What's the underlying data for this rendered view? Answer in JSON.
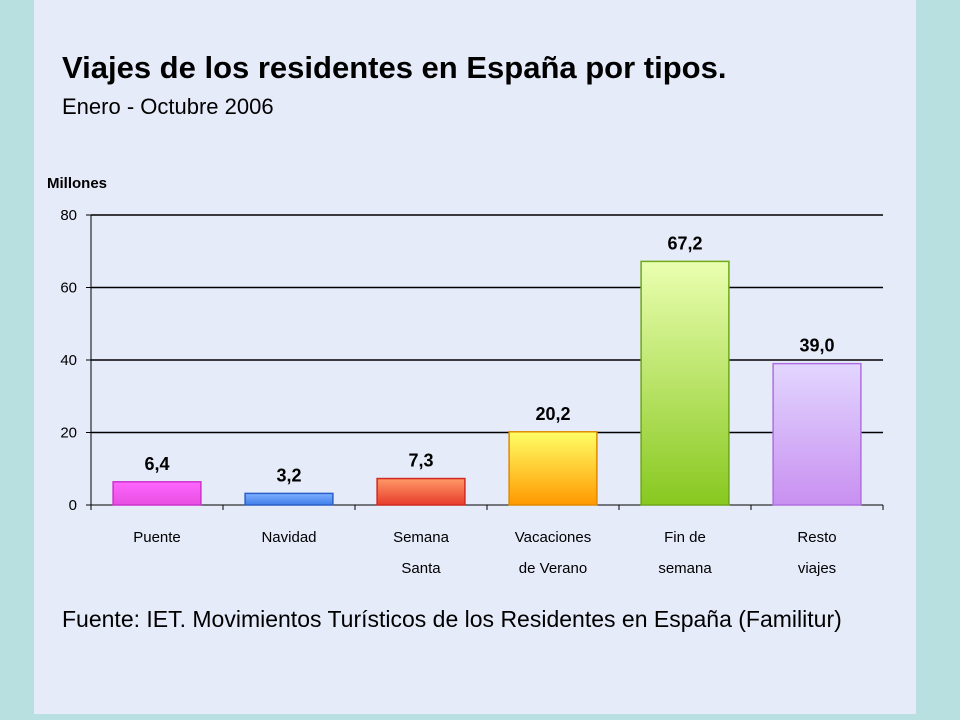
{
  "chart_data": {
    "type": "bar",
    "title": "Viajes de los residentes en España por tipos.",
    "subtitle": "Enero - Octubre 2006",
    "ylabel": "Millones",
    "xlabel": "",
    "ylim": [
      0,
      80
    ],
    "yticks": [
      0,
      20,
      40,
      60,
      80
    ],
    "grid": true,
    "categories": [
      [
        "Puente"
      ],
      [
        "Navidad"
      ],
      [
        "Semana",
        "Santa"
      ],
      [
        "Vacaciones",
        "de Verano"
      ],
      [
        "Fin de",
        "semana"
      ],
      [
        "Resto",
        "viajes"
      ]
    ],
    "values": [
      6.4,
      3.2,
      7.3,
      20.2,
      67.2,
      39.0
    ],
    "data_labels": [
      "6,4",
      "3,2",
      "7,3",
      "20,2",
      "67,2",
      "39,0"
    ],
    "colors": [
      {
        "top": "#ff66ff",
        "bottom": "#e84ee0",
        "stroke": "#cc33cc"
      },
      {
        "top": "#7fb0ff",
        "bottom": "#3f7ee8",
        "stroke": "#2a5fc8"
      },
      {
        "top": "#ff9966",
        "bottom": "#e83c2c",
        "stroke": "#d02a20"
      },
      {
        "top": "#ffff66",
        "bottom": "#ff9900",
        "stroke": "#e08a00"
      },
      {
        "top": "#eaffb0",
        "bottom": "#88c820",
        "stroke": "#6ea818"
      },
      {
        "top": "#e2d6ff",
        "bottom": "#c890f0",
        "stroke": "#b070e0"
      }
    ],
    "source": "Fuente: IET. Movimientos Turísticos de los Residentes en España (Familitur)"
  }
}
